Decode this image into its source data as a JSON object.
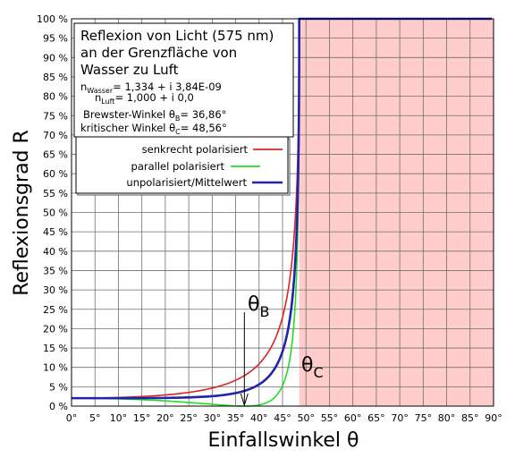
{
  "chart_data": {
    "type": "line",
    "xlabel": "Einfallswinkel θ",
    "ylabel": "Reflexionsgrad R",
    "xlim": [
      0,
      90
    ],
    "ylim": [
      0,
      100
    ],
    "x_ticks": [
      "0°",
      "5°",
      "10°",
      "15°",
      "20°",
      "25°",
      "30°",
      "35°",
      "40°",
      "45°",
      "50°",
      "55°",
      "60°",
      "65°",
      "70°",
      "75°",
      "80°",
      "85°",
      "90°"
    ],
    "y_ticks": [
      "0 %",
      "5 %",
      "10 %",
      "15 %",
      "20 %",
      "25 %",
      "30 %",
      "35 %",
      "40 %",
      "45 %",
      "50 %",
      "55 %",
      "60 %",
      "65 %",
      "70 %",
      "75 %",
      "80 %",
      "85 %",
      "90 %",
      "95 %",
      "100 %"
    ],
    "grid": true,
    "legend_position": "top-left",
    "info_box": {
      "title_lines": [
        "Reflexion von Licht (575 nm)",
        "an der Grenzfläche von",
        "Wasser zu Luft"
      ],
      "n1_symbol": "n",
      "n1_sub": "Wasser",
      "n1_value": "= 1,334 + i 3,84E-09",
      "n2_symbol": "n",
      "n2_sub": "Luft",
      "n2_value": "= 1,000 + i 0,0",
      "brewster_text": "Brewster-Winkel θ",
      "brewster_sub": "B",
      "brewster_value": "= 36,86°",
      "critical_text": "kritischer Winkel θ",
      "critical_sub": "C",
      "critical_value": "= 48,56°"
    },
    "n1": 1.334,
    "n2": 1.0,
    "brewster_angle": 36.86,
    "critical_angle": 48.56,
    "series": [
      {
        "name": "senkrecht polarisiert",
        "color": "#dd2222"
      },
      {
        "name": "parallel polarisiert",
        "color": "#22dd22"
      },
      {
        "name": "unpolarisiert/Mittelwert",
        "color": "#2222aa"
      }
    ],
    "annotations": [
      {
        "symbol": "θ",
        "sub": "B"
      },
      {
        "symbol": "θ",
        "sub": "C"
      }
    ],
    "shade_color": "#ffcccc"
  }
}
